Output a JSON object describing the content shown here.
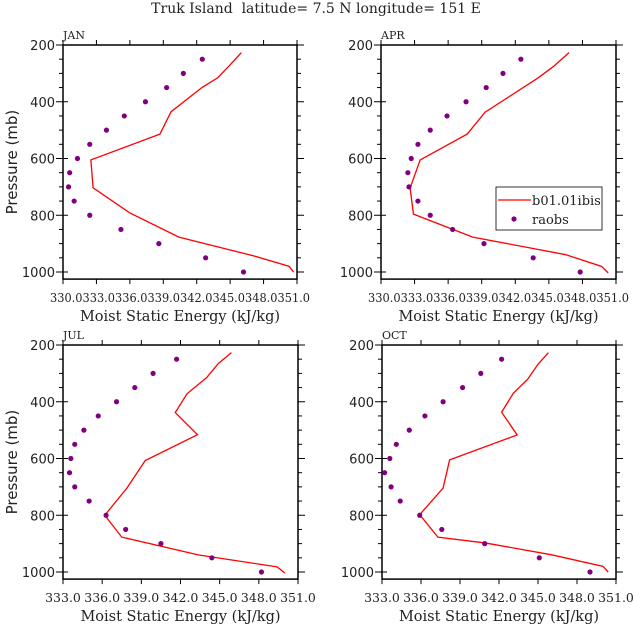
{
  "colors": {
    "model": "#ff0000",
    "obs": "#800080",
    "axis": "#000000"
  },
  "chart_data": {
    "type": "line",
    "title": "Truk Island  latitude= 7.5 N longitude= 151 E",
    "ylabel": "Pressure (mb)",
    "xlabel": "Moist Static Energy (kJ/kg)",
    "legend": {
      "placement": "inside-right of APR panel",
      "entries": [
        "b01.01ibis",
        "raobs"
      ]
    },
    "ylim": [
      200,
      1025
    ],
    "yticks": [
      "200",
      "400",
      "600",
      "800",
      "1000"
    ],
    "panels": [
      {
        "name": "JAN",
        "xlim": [
          330,
          351
        ],
        "xticks": [
          "330.0",
          "333.0",
          "336.0",
          "339.0",
          "342.0",
          "345.0",
          "348.0",
          "351.0"
        ],
        "xtick_text": "330.0333.0336.0339.0342.0345.0348.0351.0",
        "model": [
          [
            346.0,
            227
          ],
          [
            345.0,
            270
          ],
          [
            343.9,
            315
          ],
          [
            342.5,
            349
          ],
          [
            339.7,
            435
          ],
          [
            338.7,
            514
          ],
          [
            332.5,
            605
          ],
          [
            332.7,
            703
          ],
          [
            336.0,
            792
          ],
          [
            340.4,
            877
          ],
          [
            347.1,
            943
          ],
          [
            350.3,
            980
          ],
          [
            350.7,
            1001
          ]
        ],
        "raobs": [
          [
            342.5,
            250
          ],
          [
            340.8,
            300
          ],
          [
            339.3,
            350
          ],
          [
            337.4,
            400
          ],
          [
            335.5,
            450
          ],
          [
            333.9,
            500
          ],
          [
            332.4,
            550
          ],
          [
            331.3,
            600
          ],
          [
            330.6,
            650
          ],
          [
            330.5,
            700
          ],
          [
            331.0,
            750
          ],
          [
            332.4,
            800
          ],
          [
            335.2,
            850
          ],
          [
            338.6,
            900
          ],
          [
            342.8,
            950
          ],
          [
            346.2,
            1000
          ]
        ]
      },
      {
        "name": "APR",
        "xlim": [
          330,
          351
        ],
        "xticks": [
          "330.0",
          "333.0",
          "336.0",
          "339.0",
          "342.0",
          "345.0",
          "348.0",
          "351.0"
        ],
        "xtick_text": "330.0333.0336.0339.0342.0345.0348.0351.0",
        "model": [
          [
            346.8,
            227
          ],
          [
            345.4,
            276
          ],
          [
            344.0,
            317
          ],
          [
            339.3,
            437
          ],
          [
            337.7,
            514
          ],
          [
            333.5,
            605
          ],
          [
            332.6,
            704
          ],
          [
            332.9,
            796
          ],
          [
            338.2,
            877
          ],
          [
            346.5,
            939
          ],
          [
            349.7,
            980
          ],
          [
            350.3,
            1003
          ]
        ],
        "raobs": [
          [
            342.5,
            250
          ],
          [
            340.9,
            300
          ],
          [
            339.4,
            350
          ],
          [
            337.6,
            400
          ],
          [
            335.9,
            450
          ],
          [
            334.4,
            500
          ],
          [
            333.3,
            550
          ],
          [
            332.7,
            600
          ],
          [
            332.4,
            650
          ],
          [
            332.5,
            700
          ],
          [
            333.3,
            750
          ],
          [
            334.4,
            800
          ],
          [
            336.4,
            850
          ],
          [
            339.2,
            900
          ],
          [
            343.6,
            950
          ],
          [
            347.8,
            1000
          ]
        ]
      },
      {
        "name": "JUL",
        "xlim": [
          333,
          351
        ],
        "xticks": [
          "333.0",
          "336.0",
          "339.0",
          "342.0",
          "345.0",
          "348.0",
          "351.0"
        ],
        "model": [
          [
            345.9,
            227
          ],
          [
            344.9,
            265
          ],
          [
            344.0,
            315
          ],
          [
            342.5,
            372
          ],
          [
            341.6,
            438
          ],
          [
            343.3,
            516
          ],
          [
            339.3,
            607
          ],
          [
            337.9,
            704
          ],
          [
            336.2,
            800
          ],
          [
            337.5,
            877
          ],
          [
            343.4,
            940
          ],
          [
            349.4,
            982
          ],
          [
            350.0,
            1004
          ]
        ],
        "raobs": [
          [
            341.7,
            250
          ],
          [
            339.9,
            300
          ],
          [
            338.5,
            350
          ],
          [
            337.1,
            400
          ],
          [
            335.7,
            450
          ],
          [
            334.6,
            500
          ],
          [
            333.9,
            550
          ],
          [
            333.6,
            600
          ],
          [
            333.5,
            650
          ],
          [
            333.9,
            700
          ],
          [
            335.0,
            750
          ],
          [
            336.3,
            800
          ],
          [
            337.8,
            850
          ],
          [
            340.5,
            900
          ],
          [
            344.4,
            950
          ],
          [
            348.2,
            1000
          ]
        ]
      },
      {
        "name": "OCT",
        "xlim": [
          333,
          351
        ],
        "xticks": [
          "333.0",
          "336.0",
          "339.0",
          "342.0",
          "345.0",
          "348.0",
          "351.0"
        ],
        "model": [
          [
            345.8,
            227
          ],
          [
            345.0,
            268
          ],
          [
            344.2,
            321
          ],
          [
            343.1,
            370
          ],
          [
            342.2,
            437
          ],
          [
            343.4,
            517
          ],
          [
            338.2,
            605
          ],
          [
            337.7,
            704
          ],
          [
            335.9,
            798
          ],
          [
            337.3,
            877
          ],
          [
            341.0,
            898
          ],
          [
            346.0,
            939
          ],
          [
            350.0,
            980
          ],
          [
            350.4,
            1000
          ]
        ],
        "raobs": [
          [
            342.2,
            250
          ],
          [
            340.6,
            300
          ],
          [
            339.2,
            350
          ],
          [
            337.7,
            400
          ],
          [
            336.3,
            450
          ],
          [
            335.1,
            500
          ],
          [
            334.1,
            550
          ],
          [
            333.6,
            600
          ],
          [
            333.2,
            650
          ],
          [
            333.7,
            700
          ],
          [
            334.4,
            750
          ],
          [
            335.9,
            800
          ],
          [
            337.6,
            850
          ],
          [
            340.9,
            900
          ],
          [
            345.1,
            950
          ],
          [
            349.0,
            1000
          ]
        ]
      }
    ]
  }
}
